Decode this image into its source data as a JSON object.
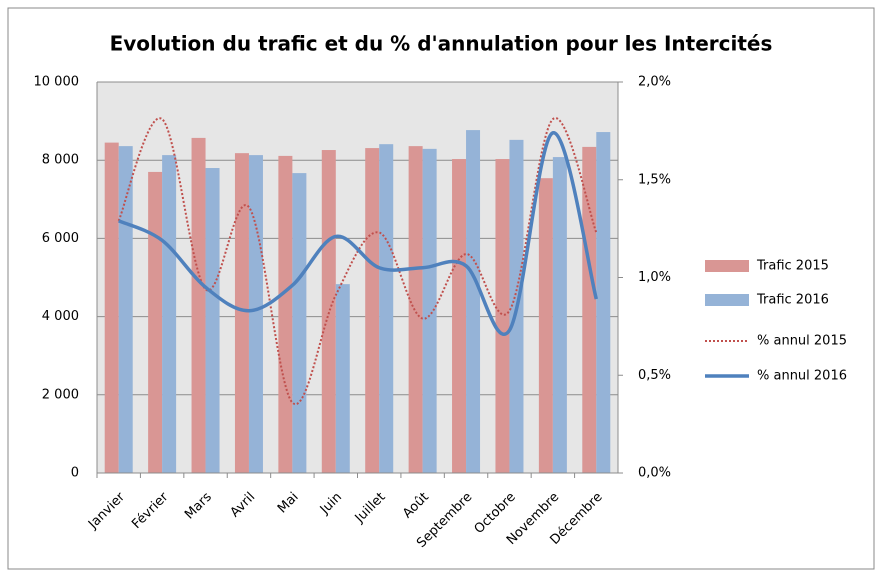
{
  "chart_data": {
    "type": "bar-line",
    "title": "Evolution du trafic et du % d'annulation pour les Intercités",
    "categories": [
      "Janvier",
      "Février",
      "Mars",
      "Avril",
      "Mai",
      "Juin",
      "Juillet",
      "Août",
      "Septembre",
      "Octobre",
      "Novembre",
      "Décembre"
    ],
    "series": [
      {
        "name": "Trafic 2015",
        "type": "bar",
        "color": "#d99694",
        "values": [
          8450,
          7700,
          8570,
          8180,
          8110,
          8260,
          8310,
          8360,
          8030,
          8030,
          7540,
          8340
        ]
      },
      {
        "name": "Trafic 2016",
        "type": "bar",
        "color": "#95b3d7",
        "values": [
          8360,
          8130,
          7800,
          8130,
          7670,
          4830,
          8410,
          8290,
          8770,
          8520,
          8080,
          8720
        ]
      },
      {
        "name": "% annul 2015",
        "type": "line",
        "style": "dotted",
        "axis": "y2",
        "color": "#c0504d",
        "values": [
          1.29,
          1.81,
          0.94,
          1.36,
          0.36,
          0.91,
          1.23,
          0.79,
          1.12,
          0.83,
          1.81,
          1.23
        ]
      },
      {
        "name": "% annul 2016",
        "type": "line",
        "style": "solid",
        "axis": "y2",
        "color": "#4f81bd",
        "values": [
          1.29,
          1.19,
          0.95,
          0.83,
          0.96,
          1.21,
          1.05,
          1.05,
          1.06,
          0.73,
          1.74,
          0.89
        ]
      }
    ],
    "ylim": [
      0,
      10000
    ],
    "yticks": [
      0,
      {
        "value": 2000,
        "label": "2 000"
      },
      {
        "value": 4000,
        "label": "4 000"
      },
      {
        "value": 6000,
        "label": "6 000"
      },
      {
        "value": 8000,
        "label": "8 000"
      },
      {
        "value": 10000,
        "label": "10 000"
      }
    ],
    "y2lim": [
      0,
      2
    ],
    "y2ticks": [
      {
        "value": 0,
        "label": "0,0%"
      },
      {
        "value": 0.5,
        "label": "0,5%"
      },
      {
        "value": 1,
        "label": "1,0%"
      },
      {
        "value": 1.5,
        "label": "1,5%"
      },
      {
        "value": 2,
        "label": "2,0%"
      }
    ],
    "grid": true,
    "legend": "right"
  }
}
